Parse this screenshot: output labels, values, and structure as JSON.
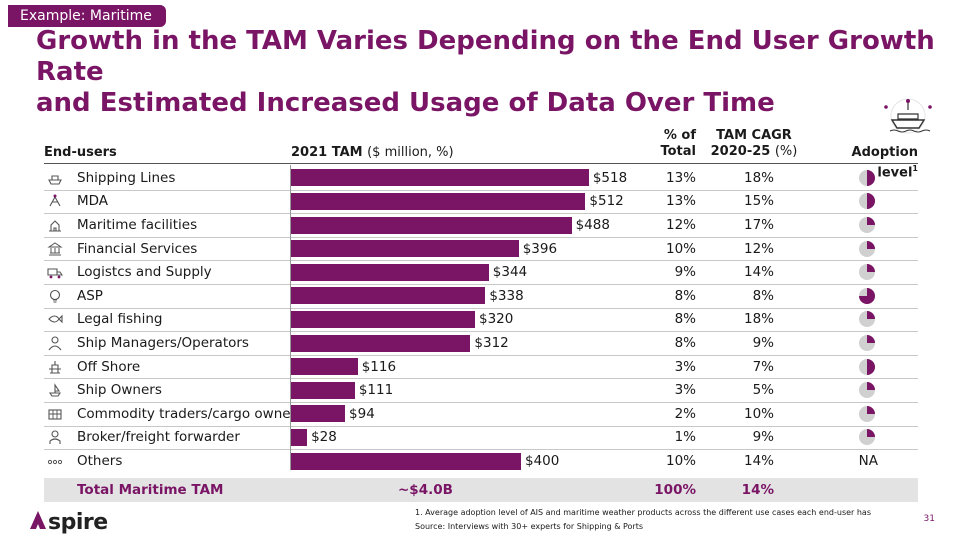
{
  "tag": "Example: Maritime",
  "title_line1": "Growth in the TAM Varies Depending on the End User Growth Rate",
  "title_line2": "and Estimated Increased Usage of Data Over Time",
  "headers": {
    "end_users": "End-users",
    "tam": "2021 TAM",
    "tam_units": "($ million, %)",
    "pct_line1": "% of",
    "pct_line2": "Total",
    "cagr_line1": "TAM CAGR",
    "cagr_line2": "2020-25",
    "cagr_units": "(%)",
    "adoption": "Adoption level",
    "adoption_sup": "1"
  },
  "chart_data": {
    "type": "bar",
    "orientation": "horizontal",
    "categories": [
      "Shipping Lines",
      "MDA",
      "Maritime facilities",
      "Financial Services",
      "Logistcs and Supply",
      "ASP",
      "Legal fishing",
      "Ship Managers/Operators",
      "Off Shore",
      "Ship Owners",
      "Commodity traders/cargo owners",
      "Broker/freight forwarder",
      "Others"
    ],
    "values": [
      518,
      512,
      488,
      396,
      344,
      338,
      320,
      312,
      116,
      111,
      94,
      28,
      400
    ],
    "value_labels": [
      "$518",
      "$512",
      "$488",
      "$396",
      "$344",
      "$338",
      "$320",
      "$312",
      "$116",
      "$111",
      "$94",
      "$28",
      "$400"
    ],
    "pct_of_total": [
      "13%",
      "13%",
      "12%",
      "10%",
      "9%",
      "8%",
      "8%",
      "8%",
      "3%",
      "3%",
      "2%",
      "1%",
      "10%"
    ],
    "cagr": [
      "18%",
      "15%",
      "17%",
      "12%",
      "14%",
      "8%",
      "18%",
      "9%",
      "7%",
      "5%",
      "10%",
      "9%",
      "14%"
    ],
    "adoption_level": [
      0.5,
      0.5,
      0.25,
      0.25,
      0.25,
      0.75,
      0.25,
      0.25,
      0.5,
      0.25,
      0.25,
      0.25,
      null
    ],
    "adoption_na": "NA",
    "bar_color": "#7a1565",
    "xlim": [
      0,
      600
    ]
  },
  "row_icons": [
    "ship-icon",
    "radar-icon",
    "port-icon",
    "finance-icon",
    "logistics-icon",
    "bulb-icon",
    "fishing-icon",
    "operator-icon",
    "offshore-icon",
    "owner-icon",
    "cargo-icon",
    "broker-icon",
    "ellipsis-icon"
  ],
  "total": {
    "label": "Total Maritime TAM",
    "tam": "~$4.0B",
    "pct": "100%",
    "cagr": "14%"
  },
  "footnote": "1.  Average adoption level of AIS and maritime weather products across the different use cases each end-user has",
  "source": "Source: Interviews with 30+ experts for Shipping & Ports",
  "logo_text": "spire",
  "page_number": "31",
  "colors": {
    "accent": "#7a1565",
    "pie_empty": "#d0d0d0",
    "total_band": "#e3e3e3"
  }
}
